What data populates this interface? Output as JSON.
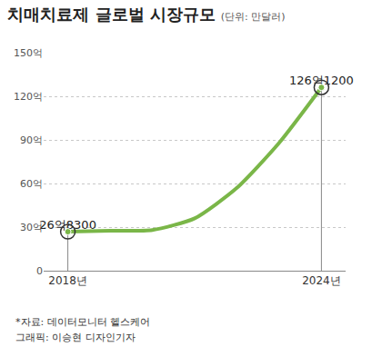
{
  "chart_data": {
    "type": "line",
    "title": "치매치료제 글로벌 시장규모",
    "subtitle": "(단위: 만달러)",
    "categories": [
      "2018년",
      null,
      null,
      null,
      null,
      null,
      "2024년"
    ],
    "values": [
      26.83,
      27.5,
      28,
      36,
      57,
      88,
      126.12
    ],
    "value_labels": [
      "26억8300",
      null,
      null,
      null,
      null,
      null,
      "126억1200"
    ],
    "data_labels": true,
    "color": "#7ab648",
    "line_style": "solid",
    "ylim": [
      0,
      150
    ],
    "yticks": [
      0,
      {
        "value": 30,
        "label": "30억"
      },
      {
        "value": 60,
        "label": "60억"
      },
      {
        "value": 90,
        "label": "90억"
      },
      {
        "value": 120,
        "label": "120억"
      },
      {
        "value": 150,
        "label": "150억"
      }
    ],
    "grid": true,
    "source": "*자료: 데이터모니터 헬스케어",
    "credit": "그래픽: 이승현 디자인기자"
  }
}
